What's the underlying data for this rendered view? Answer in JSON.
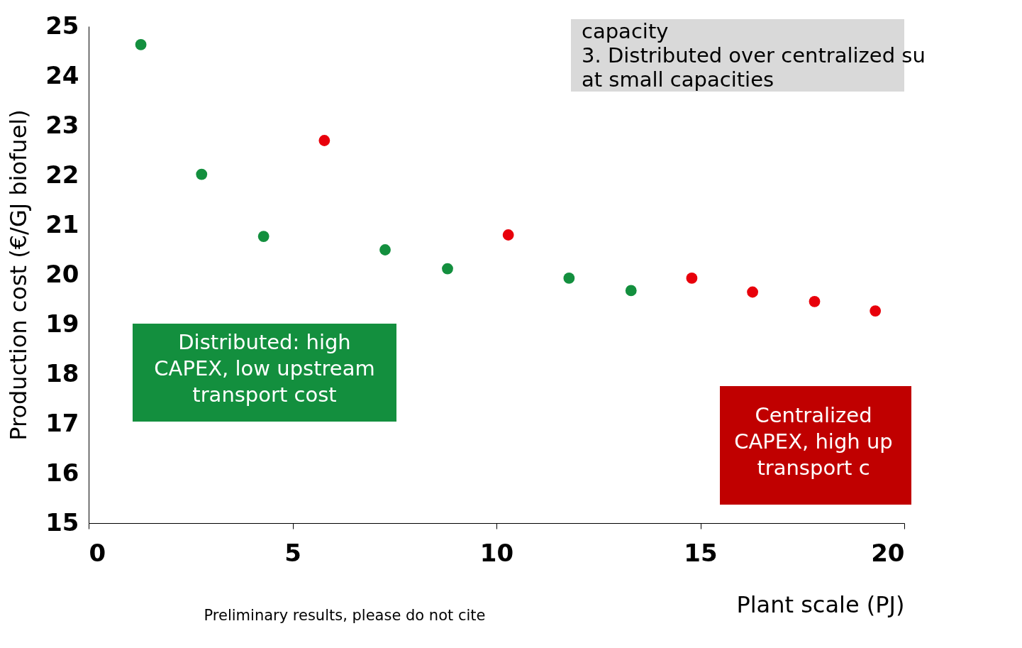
{
  "chart_data": {
    "type": "scatter",
    "xlabel": "Plant scale (PJ)",
    "ylabel": "Production cost (€/GJ biofuel)",
    "xlim": [
      0,
      20
    ],
    "xticks": [
      0,
      5,
      10,
      15,
      20
    ],
    "ylim": [
      15,
      25
    ],
    "yticks": [
      15,
      16,
      17,
      18,
      19,
      20,
      21,
      22,
      23,
      24,
      25
    ],
    "grid": false,
    "marker": "circle",
    "series": [
      {
        "color": "#138f3e",
        "x": [
          1.28,
          2.77,
          4.29,
          7.27,
          8.8,
          11.78,
          13.3
        ],
        "values": [
          24.63,
          22.02,
          20.77,
          20.5,
          20.12,
          19.93,
          19.68
        ]
      },
      {
        "color": "#e8000b",
        "x": [
          5.78,
          10.29,
          14.79,
          16.28,
          17.8,
          19.29
        ],
        "values": [
          22.7,
          20.8,
          19.93,
          19.65,
          19.46,
          19.27
        ]
      }
    ],
    "annotations": [
      "capacity\n3. Distributed over centralized su\nat small capacities",
      "Distributed: high\nCAPEX, low upstream\ntransport cost",
      "Centralized\nCAPEX, high up\ntransport c",
      "Preliminary results, please do not cite"
    ]
  }
}
